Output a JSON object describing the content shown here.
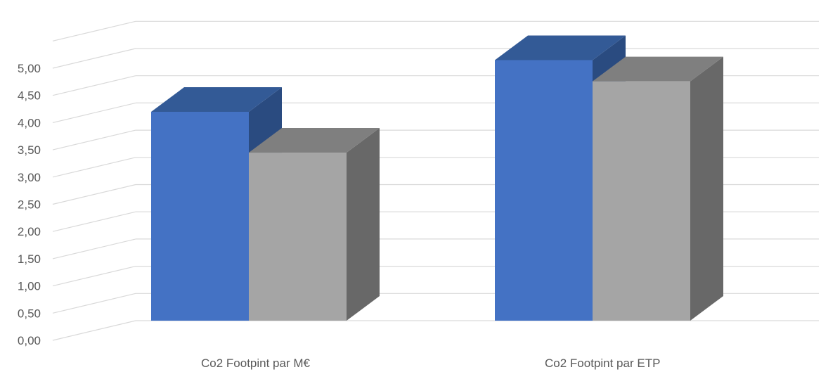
{
  "chart_data": {
    "type": "bar",
    "style": "3d-clustered-column",
    "categories": [
      "Co2 Footpint par M€",
      "Co2 Footpint par ETP"
    ],
    "series": [
      {
        "color": "#4472C4",
        "values": [
          4.07,
          5.02
        ]
      },
      {
        "color": "#A5A5A5",
        "values": [
          3.32,
          4.63
        ]
      }
    ],
    "yticks": [
      "0,00",
      "0,50",
      "1,00",
      "1,50",
      "2,00",
      "2,50",
      "3,00",
      "3,50",
      "4,00",
      "4,50",
      "5,00"
    ],
    "ylim": [
      0,
      5.5
    ],
    "grid": true,
    "legend": "none"
  }
}
